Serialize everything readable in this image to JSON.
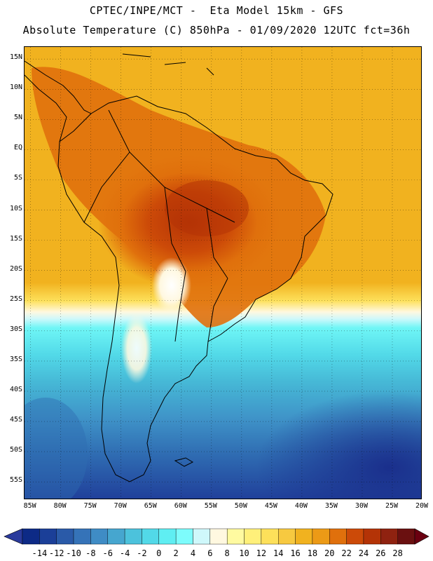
{
  "header": {
    "line1": "CPTEC/INPE/MCT -  Eta Model 15km - GFS",
    "line2": "Absolute Temperature (C) 850hPa - 01/09/2020 12UTC fct=36h"
  },
  "map": {
    "region": "South America",
    "lat_labels": [
      "15N",
      "10N",
      "5N",
      "EQ",
      "5S",
      "10S",
      "15S",
      "20S",
      "25S",
      "30S",
      "35S",
      "40S",
      "45S",
      "50S",
      "55S"
    ],
    "lon_labels": [
      "85W",
      "80W",
      "75W",
      "70W",
      "65W",
      "60W",
      "55W",
      "50W",
      "45W",
      "40W",
      "35W",
      "30W",
      "25W",
      "20W"
    ],
    "lat_range": [
      17,
      -58
    ],
    "lon_range": [
      -86,
      -20
    ]
  },
  "colorbar": {
    "labels": [
      "-14",
      "-12",
      "-10",
      "-8",
      "-6",
      "-4",
      "-2",
      "0",
      "2",
      "4",
      "6",
      "8",
      "10",
      "12",
      "14",
      "16",
      "18",
      "20",
      "22",
      "24",
      "26",
      "28"
    ],
    "colors": [
      "#0d2a86",
      "#1b3f98",
      "#2a5aa8",
      "#3573b8",
      "#3f8cc5",
      "#46a6cf",
      "#4cc2dc",
      "#52d9e8",
      "#5feef2",
      "#7dfcfc",
      "#cff8fb",
      "#fff8e0",
      "#fffaa0",
      "#fff07a",
      "#fde05a",
      "#f7c940",
      "#f1b21f",
      "#ec9a16",
      "#e0700c",
      "#cc4a08",
      "#b43306",
      "#8f2210",
      "#6a1010"
    ],
    "under_color": "#2a3a9c",
    "over_color": "#6a0010"
  },
  "colors": {
    "ocean_cold": "#5ee8f0",
    "ocean_warm": "#f1b21f",
    "land_hot": "#cc4a08"
  }
}
